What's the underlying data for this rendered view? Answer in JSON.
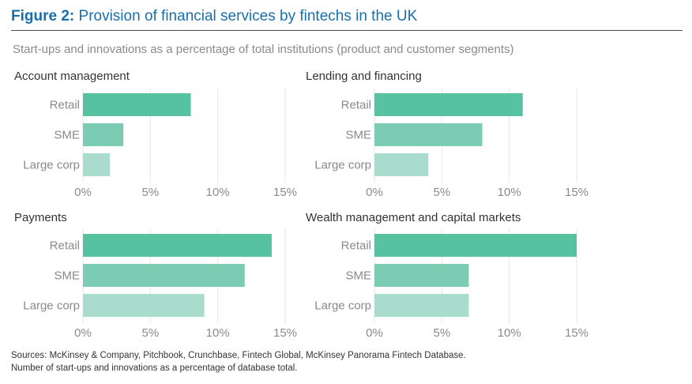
{
  "figure": {
    "label": "Figure 2:",
    "title": "Provision of financial services by fintechs in the UK",
    "subtitle": "Start-ups and innovations as a percentage of total institutions (product and customer segments)"
  },
  "colors": {
    "retail": "#56c2a0",
    "sme": "#7ccbb3",
    "large_corp": "#a9dccc",
    "title": "#1b6fa8",
    "gridline": "#e6e6e6"
  },
  "chart_data": [
    {
      "type": "bar",
      "orientation": "horizontal",
      "title": "Account management",
      "categories": [
        "Retail",
        "SME",
        "Large corp"
      ],
      "values": [
        8,
        3,
        2
      ],
      "xlim": [
        0,
        15
      ],
      "xticks": [
        "0%",
        "5%",
        "10%",
        "15%"
      ],
      "grid": true
    },
    {
      "type": "bar",
      "orientation": "horizontal",
      "title": "Lending and financing",
      "categories": [
        "Retail",
        "SME",
        "Large corp"
      ],
      "values": [
        11,
        8,
        4
      ],
      "xlim": [
        0,
        15
      ],
      "xticks": [
        "0%",
        "5%",
        "10%",
        "15%"
      ],
      "grid": true
    },
    {
      "type": "bar",
      "orientation": "horizontal",
      "title": "Payments",
      "categories": [
        "Retail",
        "SME",
        "Large corp"
      ],
      "values": [
        14,
        12,
        9
      ],
      "xlim": [
        0,
        15
      ],
      "xticks": [
        "0%",
        "5%",
        "10%",
        "15%"
      ],
      "grid": true
    },
    {
      "type": "bar",
      "orientation": "horizontal",
      "title": "Wealth management and capital markets",
      "categories": [
        "Retail",
        "SME",
        "Large corp"
      ],
      "values": [
        15,
        7,
        7
      ],
      "xlim": [
        0,
        15
      ],
      "xticks": [
        "0%",
        "5%",
        "10%",
        "15%"
      ],
      "grid": true
    }
  ],
  "footer": {
    "sources": "Sources: McKinsey & Company, Pitchbook, Crunchbase, Fintech Global, McKinsey Panorama Fintech Database.",
    "note": "Number of start-ups and innovations as a percentage of database total."
  }
}
